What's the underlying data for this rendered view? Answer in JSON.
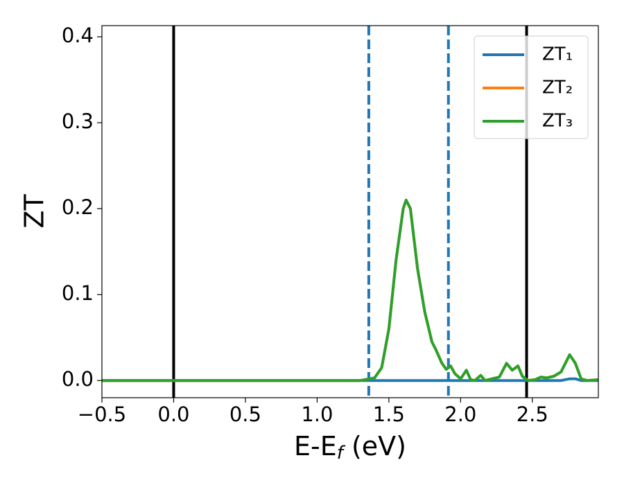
{
  "chart_data": {
    "type": "line",
    "x_label": "E-Ef (eV)",
    "y_label": "ZT",
    "x": [
      -0.5,
      0,
      0.5,
      1.0,
      1.3,
      1.4,
      1.45,
      1.5,
      1.55,
      1.6,
      1.62,
      1.65,
      1.7,
      1.75,
      1.8,
      1.83,
      1.87,
      1.9,
      1.93,
      1.96,
      2.0,
      2.04,
      2.07,
      2.1,
      2.14,
      2.17,
      2.22,
      2.27,
      2.32,
      2.36,
      2.4,
      2.43,
      2.47,
      2.52,
      2.56,
      2.6,
      2.65,
      2.7,
      2.76,
      2.8,
      2.84,
      2.88,
      2.96
    ],
    "series": [
      {
        "name": "ZT₁",
        "color": "#1f77b4",
        "values": [
          0,
          0,
          0,
          0,
          0,
          0,
          0,
          0,
          0,
          0,
          0,
          0,
          0,
          0,
          0,
          0,
          0,
          0,
          0,
          0,
          0,
          0,
          0,
          0,
          0,
          0,
          0,
          0,
          0,
          0,
          0,
          0,
          0,
          0,
          0,
          0,
          0,
          0,
          0.002,
          0.002,
          0,
          0,
          0
        ]
      },
      {
        "name": "ZT₂",
        "color": "#ff7f0e",
        "values": [
          0,
          0,
          0,
          0,
          0,
          0.003,
          0.015,
          0.06,
          0.14,
          0.2,
          0.21,
          0.2,
          0.13,
          0.08,
          0.045,
          0.035,
          0.02,
          0.013,
          0.017,
          0.008,
          0.002,
          0.012,
          0.001,
          0,
          0.006,
          0,
          0.002,
          0.004,
          0.02,
          0.012,
          0.017,
          0.005,
          0,
          0.001,
          0.004,
          0.003,
          0.005,
          0.01,
          0.03,
          0.02,
          0.002,
          0,
          0.001
        ]
      },
      {
        "name": "ZT₃",
        "color": "#2ca02c",
        "values": [
          0,
          0,
          0,
          0,
          0,
          0.003,
          0.015,
          0.06,
          0.14,
          0.2,
          0.21,
          0.2,
          0.13,
          0.08,
          0.045,
          0.035,
          0.02,
          0.013,
          0.017,
          0.008,
          0.002,
          0.012,
          0.001,
          0,
          0.006,
          0,
          0.002,
          0.004,
          0.02,
          0.012,
          0.017,
          0.005,
          0,
          0.001,
          0.004,
          0.003,
          0.005,
          0.01,
          0.03,
          0.02,
          0.002,
          0,
          0.001
        ]
      }
    ],
    "vlines": [
      {
        "x": 0,
        "color": "#000000",
        "style": "solid"
      },
      {
        "x": 2.46,
        "color": "#000000",
        "style": "solid"
      },
      {
        "x": 1.36,
        "color": "#1f77b4",
        "style": "dashed"
      },
      {
        "x": 1.915,
        "color": "#1f77b4",
        "style": "dashed"
      }
    ],
    "xlim": [
      -0.5,
      2.96
    ],
    "xticks": [
      {
        "value": -0.5,
        "label": "−0.5"
      },
      {
        "value": 0,
        "label": "0.0"
      },
      0.5,
      {
        "value": 1,
        "label": "1.0"
      },
      1.5,
      {
        "value": 2,
        "label": "2.0"
      },
      2.5
    ],
    "ylim": [
      -0.02,
      0.413
    ],
    "yticks": [
      {
        "value": 0,
        "label": "0.0"
      },
      0.1,
      0.2,
      0.3,
      0.4
    ],
    "grid": false,
    "legend": "upper right"
  }
}
